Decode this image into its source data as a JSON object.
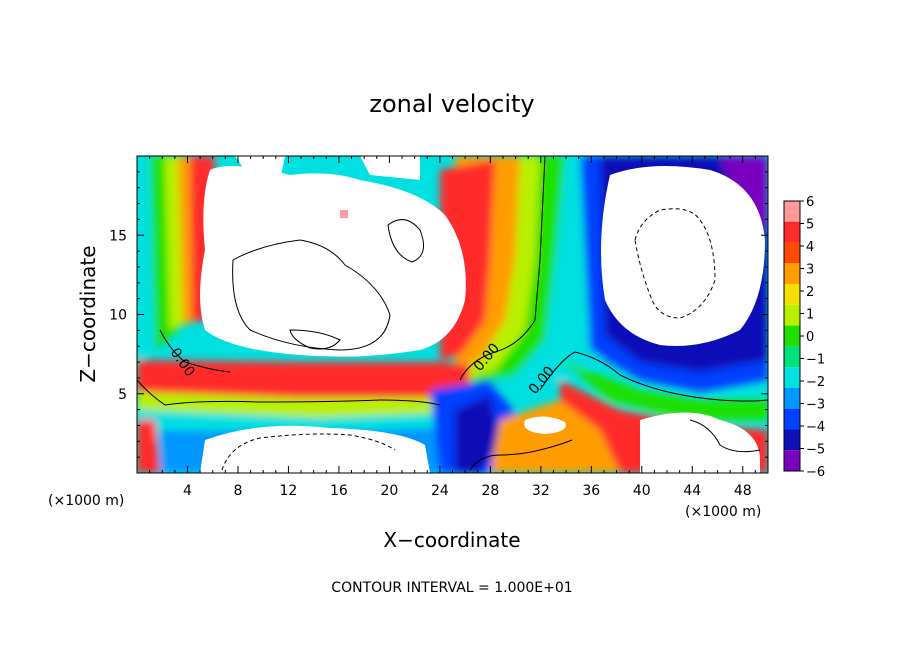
{
  "chart_data": {
    "type": "heatmap",
    "title": "zonal velocity",
    "xlabel": "X−coordinate",
    "ylabel": "Z−coordinate",
    "x_unit_left": "(×1000 m)",
    "x_unit_right": "(×1000 m)",
    "footer": "CONTOUR INTERVAL = 1.000E+01",
    "xlim": [
      0,
      50
    ],
    "ylim": [
      0,
      20
    ],
    "x_ticks": [
      4,
      8,
      12,
      16,
      20,
      24,
      28,
      32,
      36,
      40,
      44,
      48
    ],
    "y_ticks": [
      5,
      10,
      15
    ],
    "contour_labels": [
      "0.00",
      "0.00",
      "0.00"
    ],
    "colorbar": {
      "levels": [
        "6",
        "5",
        "4",
        "3",
        "2",
        "1",
        "0",
        "−1",
        "−2",
        "−3",
        "−4",
        "−5",
        "−6"
      ],
      "colors": [
        "#ff9a9a",
        "#ff2a2a",
        "#ff4a00",
        "#ff9d00",
        "#f4e000",
        "#b8f000",
        "#1fe000",
        "#00e07a",
        "#00e0e0",
        "#0096ff",
        "#0040ff",
        "#1010b8",
        "#7a00c0"
      ]
    },
    "palette": {
      "white": "#ffffff",
      "light_red": "#ff9a9a",
      "red": "#ff2a2a",
      "orange": "#ff9d00",
      "yellow": "#f4e000",
      "green": "#1fe000",
      "cyan": "#00e0e0",
      "blue": "#0040ff",
      "purple": "#7a00c0"
    }
  }
}
